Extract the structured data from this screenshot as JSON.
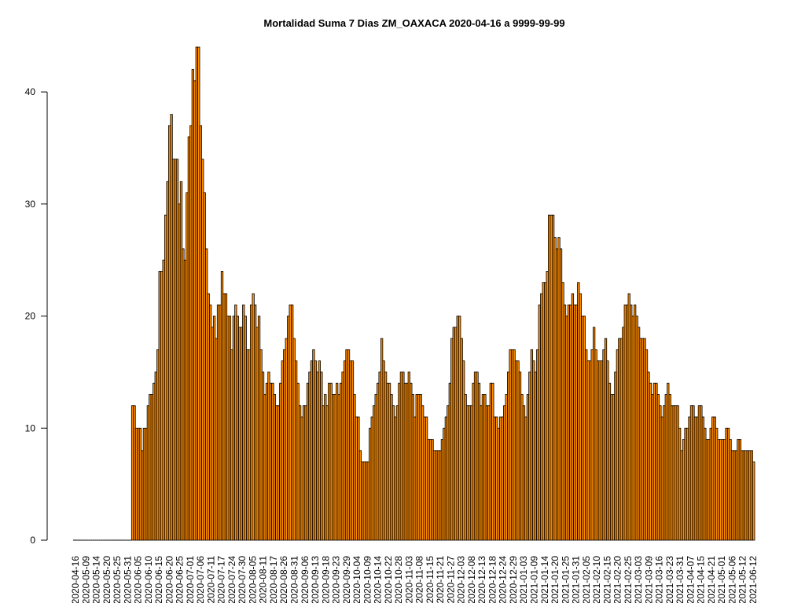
{
  "chart_data": {
    "type": "bar",
    "title": "Mortalidad Suma 7 Dias ZM_OAXACA 2020-04-16 a 9999-99-99",
    "xlabel": "",
    "ylabel": "",
    "ylim": [
      0,
      44
    ],
    "yticks": [
      0,
      10,
      20,
      30,
      40
    ],
    "start_date": "2020-04-16",
    "bar_color": "#FF8C00",
    "bar_stroke": "#000000",
    "grid": false,
    "x_tick_labels": [
      "2020-04-16",
      "2020-05-09",
      "2020-05-14",
      "2020-05-20",
      "2020-05-25",
      "2020-05-31",
      "2020-06-05",
      "2020-06-10",
      "2020-06-15",
      "2020-06-20",
      "2020-06-25",
      "2020-07-01",
      "2020-07-06",
      "2020-07-11",
      "2020-07-17",
      "2020-07-24",
      "2020-07-30",
      "2020-08-05",
      "2020-08-11",
      "2020-08-17",
      "2020-08-26",
      "2020-08-31",
      "2020-09-06",
      "2020-09-13",
      "2020-09-18",
      "2020-09-23",
      "2020-09-29",
      "2020-10-04",
      "2020-10-09",
      "2020-10-14",
      "2020-10-22",
      "2020-10-28",
      "2020-11-03",
      "2020-11-08",
      "2020-11-15",
      "2020-11-21",
      "2020-11-27",
      "2020-12-03",
      "2020-12-08",
      "2020-12-13",
      "2020-12-18",
      "2020-12-24",
      "2020-12-29",
      "2021-01-03",
      "2021-01-09",
      "2021-01-14",
      "2021-01-20",
      "2021-01-25",
      "2021-01-31",
      "2021-02-05",
      "2021-02-10",
      "2021-02-15",
      "2021-02-20",
      "2021-02-25",
      "2021-03-03",
      "2021-03-09",
      "2021-03-16",
      "2021-03-23",
      "2021-03-31",
      "2021-04-07",
      "2021-04-15",
      "2021-04-21",
      "2021-05-01",
      "2021-05-06",
      "2021-05-12",
      "2021-06-12"
    ],
    "values": [
      0,
      0,
      0,
      0,
      0,
      0,
      0,
      0,
      0,
      0,
      0,
      0,
      0,
      0,
      0,
      0,
      0,
      0,
      0,
      0,
      0,
      0,
      0,
      0,
      0,
      0,
      0,
      0,
      0,
      0,
      12,
      12,
      10,
      10,
      10,
      8,
      10,
      10,
      12,
      13,
      13,
      14,
      15,
      17,
      24,
      24,
      25,
      29,
      32,
      37,
      38,
      34,
      34,
      34,
      30,
      32,
      26,
      25,
      31,
      36,
      37,
      42,
      41,
      44,
      44,
      37,
      34,
      31,
      26,
      22,
      21,
      19,
      20,
      18,
      21,
      21,
      24,
      22,
      22,
      20,
      20,
      17,
      20,
      21,
      20,
      19,
      19,
      21,
      20,
      17,
      17,
      21,
      22,
      21,
      19,
      20,
      17,
      15,
      13,
      14,
      15,
      14,
      14,
      13,
      12,
      12,
      14,
      16,
      17,
      18,
      20,
      21,
      21,
      18,
      16,
      14,
      12,
      11,
      12,
      12,
      14,
      15,
      16,
      17,
      16,
      15,
      16,
      15,
      12,
      13,
      12,
      14,
      14,
      13,
      13,
      14,
      13,
      14,
      15,
      16,
      17,
      17,
      16,
      16,
      13,
      11,
      11,
      8,
      7,
      7,
      7,
      7,
      10,
      11,
      12,
      13,
      14,
      15,
      18,
      16,
      15,
      14,
      14,
      13,
      12,
      11,
      12,
      14,
      15,
      15,
      14,
      14,
      15,
      14,
      13,
      11,
      13,
      13,
      13,
      12,
      11,
      11,
      9,
      9,
      9,
      8,
      8,
      8,
      8,
      9,
      10,
      11,
      12,
      14,
      18,
      19,
      19,
      20,
      20,
      18,
      16,
      13,
      12,
      12,
      12,
      14,
      15,
      15,
      14,
      12,
      13,
      13,
      12,
      12,
      14,
      14,
      11,
      11,
      10,
      11,
      11,
      12,
      13,
      15,
      17,
      17,
      17,
      16,
      16,
      15,
      13,
      12,
      11,
      13,
      15,
      17,
      16,
      15,
      17,
      21,
      22,
      23,
      23,
      24,
      29,
      29,
      29,
      27,
      26,
      27,
      26,
      23,
      21,
      20,
      21,
      21,
      22,
      21,
      21,
      23,
      22,
      20,
      20,
      17,
      16,
      16,
      17,
      19,
      17,
      16,
      16,
      16,
      17,
      18,
      16,
      14,
      13,
      13,
      15,
      17,
      18,
      18,
      19,
      21,
      21,
      22,
      21,
      20,
      21,
      20,
      19,
      18,
      18,
      18,
      17,
      15,
      14,
      13,
      14,
      14,
      13,
      12,
      11,
      12,
      13,
      14,
      13,
      12,
      12,
      12,
      12,
      10,
      8,
      9,
      10,
      10,
      11,
      12,
      12,
      11,
      11,
      12,
      12,
      11,
      10,
      9,
      9,
      10,
      11,
      11,
      10,
      9,
      9,
      9,
      9,
      10,
      10,
      9,
      8,
      8,
      8,
      9,
      9,
      8,
      8,
      8,
      8,
      8,
      8,
      7
    ]
  }
}
